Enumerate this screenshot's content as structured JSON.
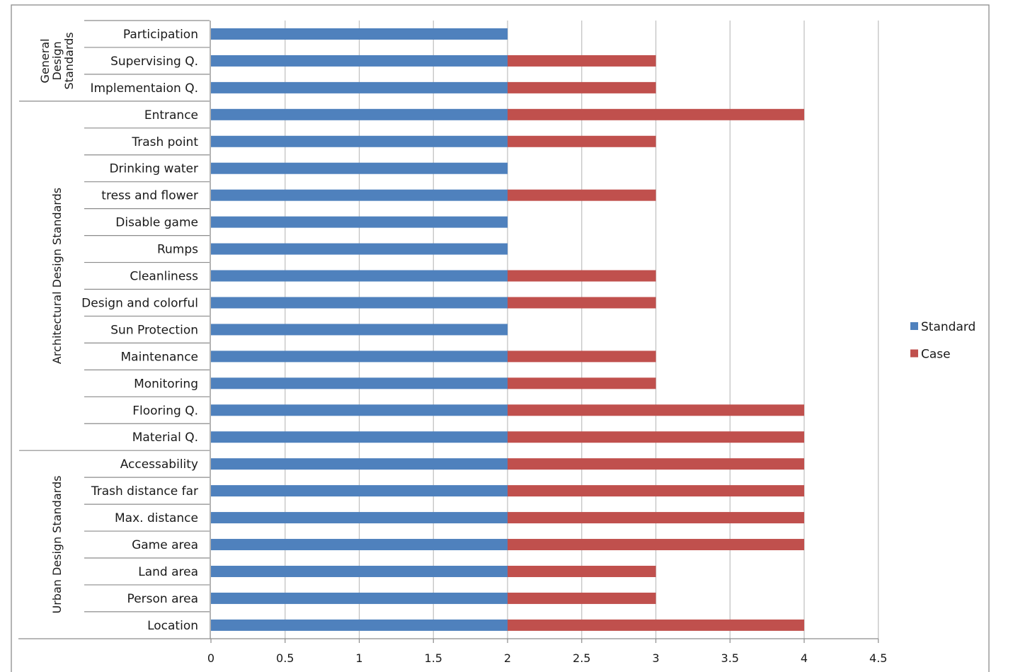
{
  "chart_data": {
    "type": "bar",
    "orientation": "horizontal",
    "stacked": true,
    "title": "",
    "xlabel": "",
    "ylabel": "",
    "xlim": [
      0,
      4.5
    ],
    "x_ticks": [
      "0",
      "0.5",
      "1",
      "1.5",
      "2",
      "2.5",
      "3",
      "3.5",
      "4",
      "4.5"
    ],
    "x_tick_values": [
      0,
      0.5,
      1,
      1.5,
      2,
      2.5,
      3,
      3.5,
      4,
      4.5
    ],
    "grid": true,
    "legend_position": "right",
    "categories": [
      "Participation",
      "Supervising Q.",
      "Implementaion Q.",
      "Entrance",
      "Trash point",
      "Drinking water",
      "tress and flower",
      "Disable game",
      "Rumps",
      "Cleanliness",
      "Design and colorful",
      "Sun Protection",
      "Maintenance",
      "Monitoring",
      "Flooring Q.",
      "Material Q.",
      "Accessability",
      "Trash distance far",
      "Max. distance",
      "Game area",
      "Land area",
      "Person area",
      "Location"
    ],
    "series": [
      {
        "name": "Standard",
        "color": "#4F81BD",
        "values": [
          2,
          2,
          2,
          2,
          2,
          2,
          2,
          2,
          2,
          2,
          2,
          2,
          2,
          2,
          2,
          2,
          2,
          2,
          2,
          2,
          2,
          2,
          2
        ]
      },
      {
        "name": "Case",
        "color": "#C0504D",
        "values": [
          0,
          1,
          1,
          2,
          1,
          0,
          1,
          0,
          0,
          1,
          1,
          0,
          1,
          1,
          2,
          2,
          2,
          2,
          2,
          2,
          1,
          1,
          2
        ]
      }
    ],
    "groups": [
      {
        "lines": [
          "General",
          "Design",
          "Standards"
        ],
        "categories": [
          "Participation",
          "Supervising Q.",
          "Implementaion Q."
        ]
      },
      {
        "lines": [
          "Architectural Design Standards"
        ],
        "categories": [
          "Entrance",
          "Trash point",
          "Drinking water",
          "tress and flower",
          "Disable game",
          "Rumps",
          "Cleanliness",
          "Design and colorful",
          "Sun Protection",
          "Maintenance",
          "Monitoring",
          "Flooring Q.",
          "Material Q."
        ]
      },
      {
        "lines": [
          "Urban Design Standards"
        ],
        "categories": [
          "Accessability",
          "Trash distance far",
          "Max. distance",
          "Game area",
          "Land area",
          "Person area",
          "Location"
        ]
      }
    ]
  }
}
